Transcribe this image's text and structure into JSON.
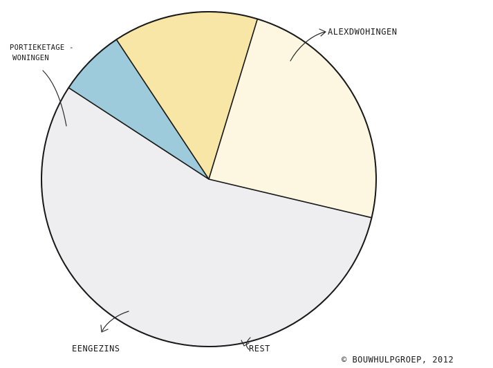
{
  "chart_data": {
    "type": "pie",
    "title": "",
    "start_angle_deg": 103.3,
    "direction": "clockwise",
    "slices": [
      {
        "label": "ALEXDWOHINGEN",
        "value": 55.5,
        "color": "#eeeef1"
      },
      {
        "label": "REST",
        "value": 6.5,
        "color": "#9dcbdc"
      },
      {
        "label": "EENGEZINS",
        "value": 14.0,
        "color": "#f7e6a6"
      },
      {
        "label": "PORTIEKETAGE-WONINGEN",
        "value": 24.0,
        "color": "#fdf6e0"
      }
    ],
    "label_lines": {
      "PORTIEKETAGE-WONINGEN": [
        "PORTIEKETAGE -",
        "WONINGEN"
      ]
    }
  },
  "copyright": "© BOUWHULPGROEP, 2012"
}
